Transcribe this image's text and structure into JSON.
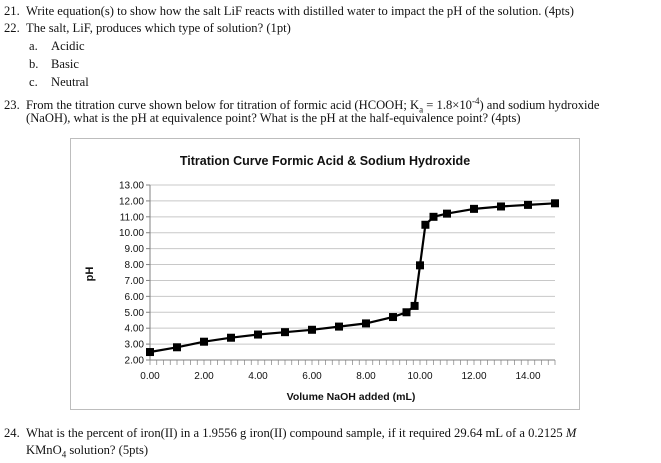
{
  "questions": {
    "q21": {
      "num": "21.",
      "text": "Write equation(s) to show how the salt LiF reacts with distilled water to impact the pH of the solution. (4pts)"
    },
    "q22": {
      "num": "22.",
      "text": "The salt, LiF, produces which type of solution? (1pt)",
      "options": [
        {
          "letter": "a.",
          "label": "Acidic"
        },
        {
          "letter": "b.",
          "label": "Basic"
        },
        {
          "letter": "c.",
          "label": "Neutral"
        }
      ]
    },
    "q23": {
      "num": "23.",
      "line1_a": "From the titration curve shown below for titration of formic acid (HCOOH; K",
      "line1_sub": "a",
      "line1_b": " = 1.8×10",
      "line1_sup": "-4",
      "line1_c": ") and sodium hydroxide",
      "line2": "(NaOH), what is the pH at equivalence point?  What is the pH at the half-equivalence point? (4pts)"
    },
    "q24": {
      "num": "24.",
      "line1_a": "What is the percent of iron(II) in a 1.9556 g iron(II) compound sample, if it required 29.64 mL of a 0.2125 ",
      "line1_m": "M",
      "line2_a": "KMnO",
      "line2_sub": "4",
      "line2_b": " solution? (5pts)"
    }
  },
  "chart_data": {
    "type": "line",
    "title": "Titration Curve Formic Acid & Sodium Hydroxide",
    "xlabel": "Volume NaOH added (mL)",
    "ylabel": "pH",
    "xlim": [
      0,
      15
    ],
    "ylim": [
      2,
      13
    ],
    "x_ticks": [
      "0.00",
      "2.00",
      "4.00",
      "6.00",
      "8.00",
      "10.00",
      "12.00",
      "14.00"
    ],
    "x_tick_values": [
      0,
      2,
      4,
      6,
      8,
      10,
      12,
      14
    ],
    "y_ticks": [
      "2.00",
      "3.00",
      "4.00",
      "5.00",
      "6.00",
      "7.00",
      "8.00",
      "9.00",
      "10.00",
      "11.00",
      "12.00",
      "13.00"
    ],
    "y_tick_values": [
      2,
      3,
      4,
      5,
      6,
      7,
      8,
      9,
      10,
      11,
      12,
      13
    ],
    "grid": true,
    "series": [
      {
        "x": [
          0,
          1,
          2,
          3,
          4,
          5,
          6,
          7,
          8,
          9,
          9.5,
          9.8,
          10,
          10.2,
          10.5,
          11,
          12,
          13,
          14,
          15
        ],
        "y": [
          2.5,
          2.8,
          3.15,
          3.4,
          3.6,
          3.75,
          3.9,
          4.1,
          4.3,
          4.7,
          5.0,
          5.4,
          7.95,
          10.5,
          11.0,
          11.2,
          11.5,
          11.65,
          11.75,
          11.85
        ]
      }
    ],
    "colors": {
      "line": "#000000",
      "grid": "#c8c8c8",
      "axis": "#808080"
    }
  }
}
